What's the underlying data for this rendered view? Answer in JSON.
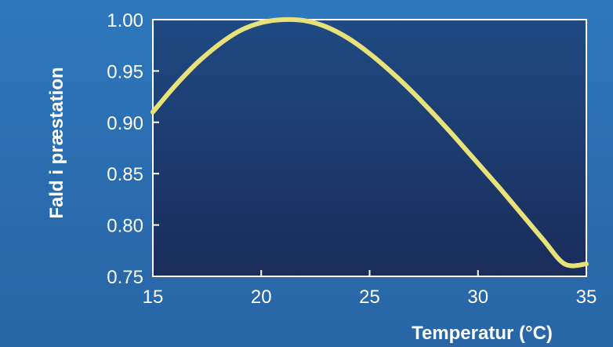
{
  "chart_data": {
    "type": "line",
    "title": "",
    "xlabel": "Temperatur (°C)",
    "ylabel": "Fald i præstation",
    "xlim": [
      15,
      35
    ],
    "ylim": [
      0.75,
      1.0
    ],
    "x_ticks": [
      "15",
      "20",
      "25",
      "30",
      "35"
    ],
    "y_ticks": [
      "1.00",
      "0.95",
      "0.90",
      "0.85",
      "0.80",
      "0.75"
    ],
    "grid": false,
    "series": [
      {
        "color": "#e8e27a",
        "x": [
          15,
          16,
          17,
          18,
          19,
          20,
          21,
          22,
          23,
          24,
          25,
          26,
          27,
          28,
          29,
          30,
          31,
          32,
          33,
          34,
          35
        ],
        "y": [
          0.91,
          0.935,
          0.957,
          0.975,
          0.989,
          0.997,
          1.0,
          0.999,
          0.993,
          0.982,
          0.967,
          0.949,
          0.929,
          0.907,
          0.884,
          0.86,
          0.836,
          0.811,
          0.786,
          0.762,
          0.762
        ]
      }
    ],
    "colors": {
      "background": "#2f78bd",
      "plot_top": "#1f4a82",
      "plot_bottom": "#1a2c5a",
      "frame": "#ffffff",
      "text": "#ffffff"
    }
  }
}
